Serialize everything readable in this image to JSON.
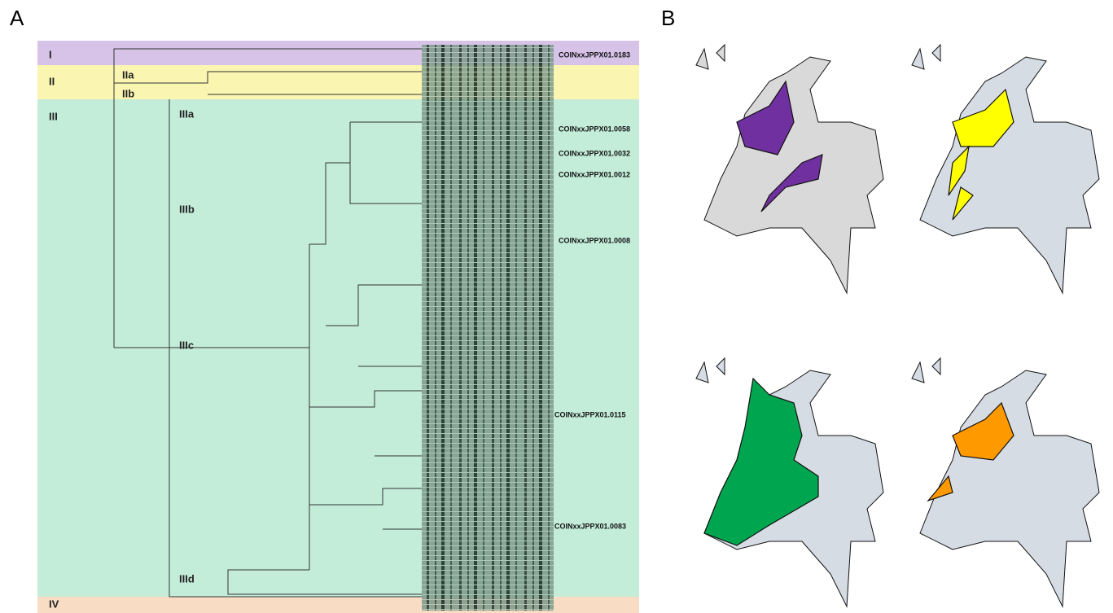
{
  "panels": {
    "a": {
      "label": "A",
      "clades": [
        {
          "label": "I"
        },
        {
          "label": "II"
        },
        {
          "label": "IIa"
        },
        {
          "label": "IIb"
        },
        {
          "label": "III"
        },
        {
          "label": "IIIa"
        },
        {
          "label": "IIIb"
        },
        {
          "label": "IIIc"
        },
        {
          "label": "IIId"
        },
        {
          "label": "IV"
        }
      ],
      "isolates": [
        {
          "label": "COINxxJPPX01.0183"
        },
        {
          "label": "COINxxJPPX01.0058"
        },
        {
          "label": "COINxxJPPX01.0032"
        },
        {
          "label": "COINxxJPPX01.0012"
        },
        {
          "label": "COINxxJPPX01.0008"
        },
        {
          "label": "COINxxJPPX01.0115"
        },
        {
          "label": "COINxxJPPX01.0083"
        }
      ]
    },
    "b": {
      "label": "B"
    }
  }
}
